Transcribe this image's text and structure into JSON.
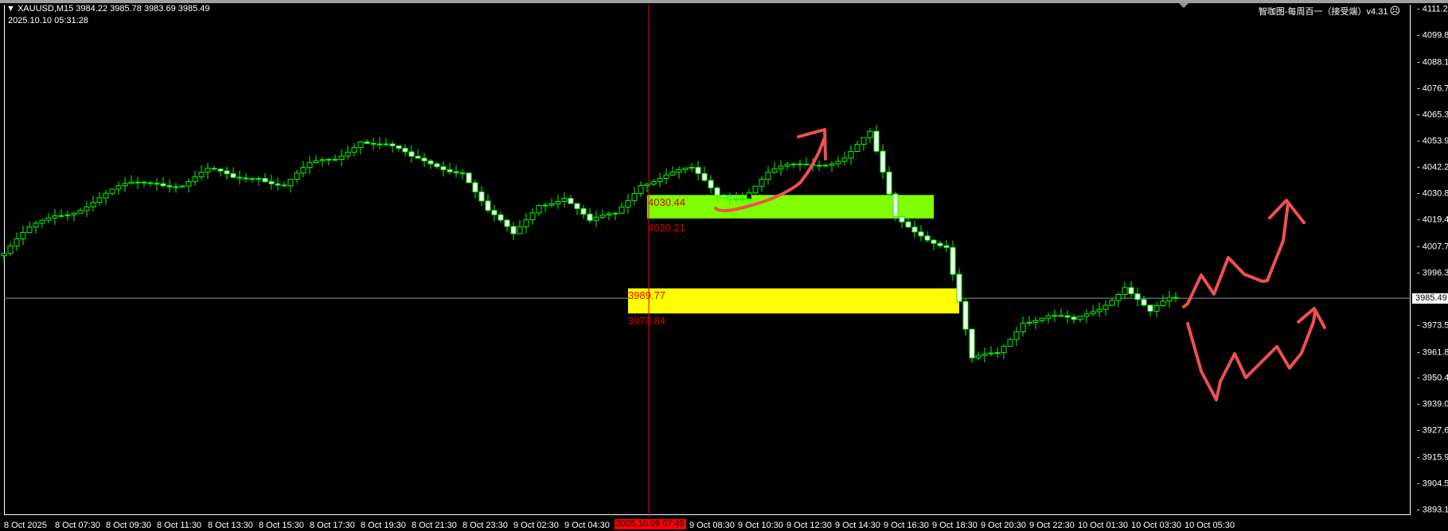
{
  "header": {
    "symbol_line": "XAUUSD,M15  3984.22 3985.78 3983.69 3985.49",
    "server_time": "2025.10.10 05:31:28",
    "indicator_name": "智咖图-每周百一（接受端）v4.31",
    "indicator_icon": "sad-face-icon"
  },
  "crosshair": {
    "time_label": "2025.10.09 07:45",
    "price_label": "3985.49"
  },
  "zones": [
    {
      "upper": "4030.44",
      "lower": "4020.21",
      "color": "#7fff00"
    },
    {
      "upper": "3989.77",
      "lower": "3978.84",
      "color": "#ffff00"
    }
  ],
  "colors": {
    "candle_outline": "#00ff00",
    "bull_body": "#000000",
    "bear_body": "#ffffff",
    "annotation": "#f05050",
    "crosshair_v": "#ff0000",
    "crosshair_h": "#8a93a6"
  },
  "chart_data": {
    "type": "candlestick",
    "symbol": "XAUUSD",
    "timeframe": "M15",
    "ylim": [
      3893.1,
      4111.2
    ],
    "y_ticks": [
      "4111.20",
      "4099.80",
      "4088.10",
      "4076.70",
      "4065.30",
      "4053.90",
      "4042.20",
      "4030.80",
      "4019.40",
      "4007.70",
      "3996.30",
      "3973.50",
      "3961.80",
      "3950.40",
      "3939.00",
      "3927.60",
      "3915.90",
      "3904.50",
      "3893.10"
    ],
    "x_ticks": [
      "8 Oct 2025",
      "8 Oct 07:30",
      "8 Oct 09:30",
      "8 Oct 11:30",
      "8 Oct 13:30",
      "8 Oct 15:30",
      "8 Oct 17:30",
      "8 Oct 19:30",
      "8 Oct 21:30",
      "8 Oct 23:30",
      "9 Oct 02:30",
      "9 Oct 04:30",
      "",
      "9 Oct 08:30",
      "9 Oct 10:30",
      "9 Oct 12:30",
      "9 Oct 14:30",
      "9 Oct 16:30",
      "9 Oct 18:30",
      "9 Oct 20:30",
      "9 Oct 22:30",
      "10 Oct 01:30",
      "10 Oct 03:30",
      "10 Oct 05:30"
    ],
    "hourly_close_approx": [
      4005,
      4014,
      4022,
      4026,
      4030,
      4034,
      4037,
      4036,
      4040,
      4037,
      4040,
      4035,
      4042,
      4046,
      4056,
      4052,
      4045,
      4044,
      4042,
      4022,
      4012,
      4028,
      4030,
      4017,
      4022,
      4037,
      4039,
      4040,
      4031,
      4031,
      4039,
      4042,
      4045,
      4048,
      4056,
      4020,
      4015,
      4008,
      3957,
      3962,
      3977,
      3977,
      3974,
      3982,
      3992,
      3978,
      3985.49
    ],
    "last_close": 3985.49,
    "grid": false
  }
}
